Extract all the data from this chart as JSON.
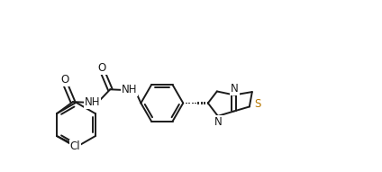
{
  "background_color": "#ffffff",
  "line_color": "#1a1a1a",
  "S_color": "#b87800",
  "N_color": "#1a1a1a",
  "line_width": 1.4,
  "figsize": [
    4.24,
    1.91
  ],
  "dpi": 100,
  "xlim": [
    0,
    10.5
  ],
  "ylim": [
    0,
    5.5
  ]
}
